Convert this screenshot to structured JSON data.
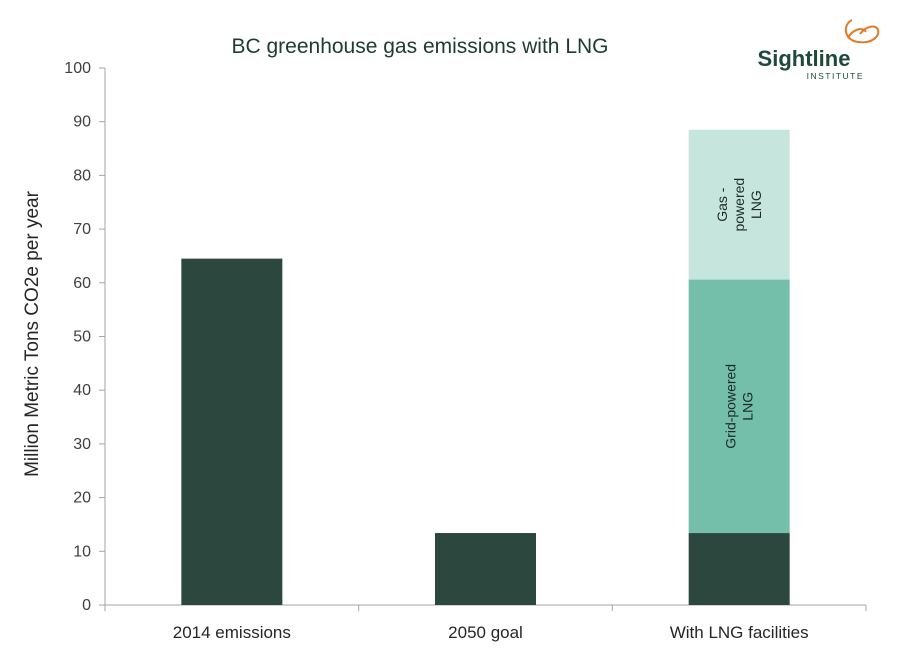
{
  "logo": {
    "name": "Sightline",
    "sub": "INSTITUTE"
  },
  "colors": {
    "dark": "#2c473e",
    "mid": "#73bfa9",
    "light": "#c6e5dd",
    "axis": "#a6a6a6",
    "logo_orange": "#e07a27"
  },
  "chart_data": {
    "type": "bar",
    "stacked": true,
    "title": "BC greenhouse gas emissions with LNG",
    "ylabel": "Million Metric Tons CO2e per year",
    "xlabel": "",
    "ylim": [
      0,
      100
    ],
    "yticks": [
      "0",
      "10",
      "20",
      "30",
      "40",
      "50",
      "60",
      "70",
      "80",
      "90",
      "100"
    ],
    "grid": false,
    "legend": "none",
    "categories": [
      "2014 emissions",
      "2050 goal",
      "With LNG facilities"
    ],
    "series": [
      {
        "values": [
          64.5,
          13.4,
          13.4
        ]
      },
      {
        "name": "Grid-powered LNG",
        "values": [
          0,
          0,
          47.2
        ]
      },
      {
        "name": "Gas - powered LNG",
        "values": [
          0,
          0,
          27.9
        ]
      }
    ]
  }
}
